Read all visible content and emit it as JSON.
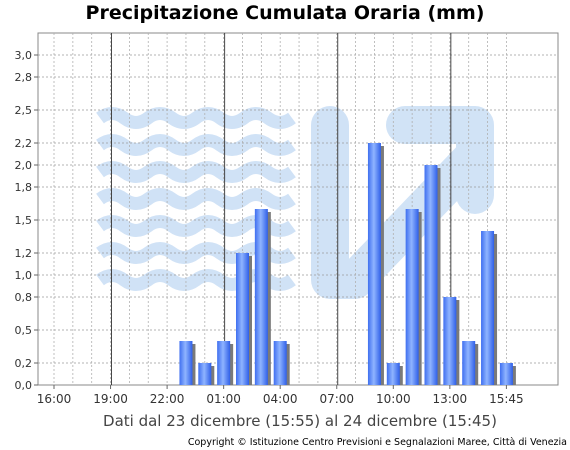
{
  "chart_data": {
    "type": "bar",
    "title": "Precipitazione Cumulata Oraria (mm)",
    "xlabel": "Dati dal 23 dicembre (15:55) al 24 dicembre (15:45)",
    "ylabel": "",
    "ylim": [
      0,
      3.2
    ],
    "yticks": [
      0.0,
      0.2,
      0.5,
      0.8,
      1.0,
      1.2,
      1.5,
      1.8,
      2.0,
      2.2,
      2.5,
      2.8,
      3.0
    ],
    "ytick_labels": [
      "0,0",
      "0,2",
      "0,5",
      "0,8",
      "1,0",
      "1,2",
      "1,5",
      "1,8",
      "2,0",
      "2,2",
      "2,5",
      "2,8",
      "3,0"
    ],
    "xtick_labels": [
      "16:00",
      "19:00",
      "22:00",
      "01:00",
      "04:00",
      "07:00",
      "10:00",
      "13:00",
      "15:45"
    ],
    "grid": true,
    "categories": [
      "16:00",
      "17:00",
      "18:00",
      "19:00",
      "20:00",
      "21:00",
      "22:00",
      "23:00",
      "00:00",
      "01:00",
      "02:00",
      "03:00",
      "04:00",
      "05:00",
      "06:00",
      "07:00",
      "08:00",
      "09:00",
      "10:00",
      "11:00",
      "12:00",
      "13:00",
      "14:00",
      "15:00",
      "15:45"
    ],
    "values": [
      0,
      0,
      0,
      0,
      0,
      0,
      0,
      0.4,
      0.2,
      0.4,
      1.2,
      1.6,
      0.4,
      0,
      0,
      0,
      0,
      2.2,
      0.2,
      1.6,
      2.0,
      0.8,
      0.4,
      1.4,
      0.2
    ],
    "bar_color": "#5b8ff9"
  },
  "copyright": "Copyright © Istituzione Centro Previsioni e Segnalazioni Maree, Città di Venezia"
}
